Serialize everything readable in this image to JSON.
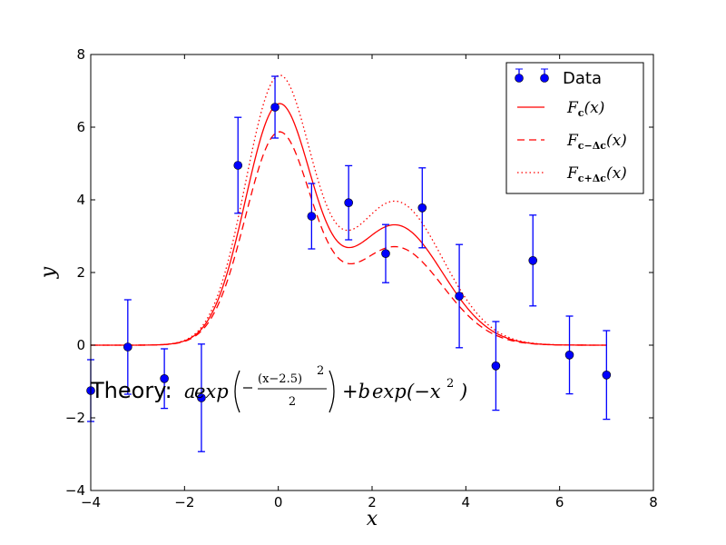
{
  "chart_data": {
    "type": "scatter",
    "xlabel": "x",
    "ylabel": "y",
    "xlim": [
      -4,
      8
    ],
    "ylim": [
      -4,
      8
    ],
    "xticks": [
      -4,
      -2,
      0,
      2,
      4,
      6,
      8
    ],
    "yticks": [
      -4,
      -2,
      0,
      2,
      4,
      6,
      8
    ],
    "grid": false,
    "legend_placement": "top-right",
    "colors": {
      "data": "#0000ff",
      "model": "#ff0000"
    },
    "data_series": {
      "name": "Data",
      "x": [
        -4.0,
        -3.21,
        -2.43,
        -1.64,
        -0.86,
        -0.07,
        0.71,
        1.5,
        2.29,
        3.07,
        3.86,
        4.64,
        5.43,
        6.21,
        7.0
      ],
      "y": [
        -1.25,
        -0.05,
        -0.92,
        -1.45,
        4.95,
        6.55,
        3.55,
        3.92,
        2.52,
        3.78,
        1.35,
        -0.57,
        2.33,
        -0.27,
        -0.82
      ],
      "yerr": [
        0.85,
        1.3,
        0.82,
        1.48,
        1.32,
        0.85,
        0.9,
        1.02,
        0.8,
        1.1,
        1.42,
        1.22,
        1.25,
        1.07,
        1.22
      ]
    },
    "model_curves": [
      {
        "name": "F_c(x)",
        "label_base": "F",
        "label_sub": "c",
        "label_arg": "(x)",
        "style": "solid",
        "a": 3.3,
        "b": 6.5
      },
      {
        "name": "F_{c-Δc}(x)",
        "label_base": "F",
        "label_sub": "c−Δc",
        "label_arg": "(x)",
        "style": "dashed",
        "a": 2.7,
        "b": 5.75
      },
      {
        "name": "F_{c+Δc}(x)",
        "label_base": "F",
        "label_sub": "c+Δc",
        "label_arg": "(x)",
        "style": "dotted",
        "a": 3.95,
        "b": 7.25
      }
    ],
    "annotation": {
      "prefix": "Theory: ",
      "formula_a": "a",
      "formula_exp": "exp",
      "formula_num": "(x−2.5)",
      "formula_num_exp": "2",
      "formula_den": "2",
      "formula_plus_b": "+b",
      "formula_exp2": "exp",
      "formula_arg2": "(−x",
      "formula_arg2_exp": "2",
      "formula_close": ")",
      "anchor_x": -4,
      "anchor_y": -1.25
    }
  }
}
